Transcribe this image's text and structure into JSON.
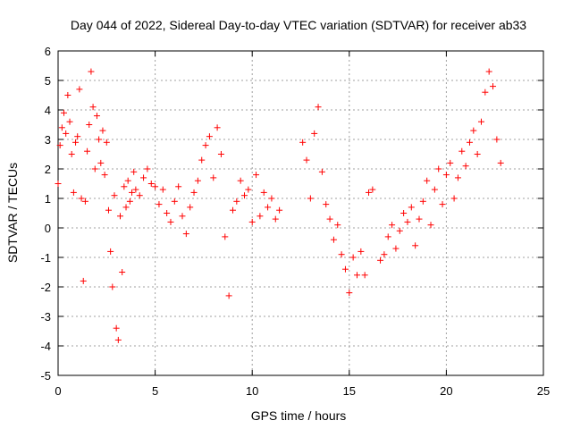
{
  "chart_data": {
    "type": "scatter",
    "title": "Day 044 of 2022, Sidereal Day-to-day VTEC variation (SDTVAR) for receiver ab33",
    "xlabel": "GPS time / hours",
    "ylabel": "SDTVAR / TECUs",
    "xlim": [
      0,
      25
    ],
    "ylim": [
      -5,
      6
    ],
    "xticks": [
      0,
      5,
      10,
      15,
      20,
      25
    ],
    "yticks": [
      -5,
      -4,
      -3,
      -2,
      -1,
      0,
      1,
      2,
      3,
      4,
      5,
      6
    ],
    "grid": true,
    "marker": "+",
    "series": [
      {
        "name": "SDTVAR ab33",
        "color": "#ff0000",
        "x": [
          0.0,
          0.1,
          0.2,
          0.3,
          0.4,
          0.5,
          0.6,
          0.7,
          0.8,
          0.9,
          1.0,
          1.1,
          1.2,
          1.3,
          1.4,
          1.5,
          1.6,
          1.7,
          1.8,
          1.9,
          2.0,
          2.1,
          2.2,
          2.3,
          2.4,
          2.5,
          2.6,
          2.7,
          2.8,
          2.9,
          3.0,
          3.1,
          3.2,
          3.3,
          3.4,
          3.5,
          3.6,
          3.7,
          3.8,
          3.9,
          4.0,
          4.2,
          4.4,
          4.6,
          4.8,
          5.0,
          5.2,
          5.4,
          5.6,
          5.8,
          6.0,
          6.2,
          6.4,
          6.6,
          6.8,
          7.0,
          7.2,
          7.4,
          7.6,
          7.8,
          8.0,
          8.2,
          8.4,
          8.6,
          8.8,
          9.0,
          9.2,
          9.4,
          9.6,
          9.8,
          10.0,
          10.2,
          10.4,
          10.6,
          10.8,
          11.0,
          11.2,
          11.4,
          12.6,
          12.8,
          13.0,
          13.2,
          13.4,
          13.6,
          13.8,
          14.0,
          14.2,
          14.4,
          14.6,
          14.8,
          15.0,
          15.2,
          15.4,
          15.6,
          15.8,
          16.0,
          16.2,
          16.6,
          16.8,
          17.0,
          17.2,
          17.4,
          17.6,
          17.8,
          18.0,
          18.2,
          18.4,
          18.6,
          18.8,
          19.0,
          19.2,
          19.4,
          19.6,
          19.8,
          20.0,
          20.2,
          20.4,
          20.6,
          20.8,
          21.0,
          21.2,
          21.4,
          21.6,
          21.8,
          22.0,
          22.2,
          22.4,
          22.6,
          22.8
        ],
        "y": [
          1.5,
          2.8,
          3.4,
          3.9,
          3.2,
          4.5,
          3.6,
          2.5,
          1.2,
          2.9,
          3.1,
          4.7,
          1.0,
          -1.8,
          0.9,
          2.6,
          3.5,
          5.3,
          4.1,
          2.0,
          3.8,
          3.0,
          2.2,
          3.3,
          1.8,
          2.9,
          0.6,
          -0.8,
          -2.0,
          1.1,
          -3.4,
          -3.8,
          0.4,
          -1.5,
          1.4,
          0.7,
          1.6,
          0.9,
          1.2,
          1.9,
          1.3,
          1.1,
          1.7,
          2.0,
          1.5,
          1.4,
          0.8,
          1.3,
          0.5,
          0.2,
          0.9,
          1.4,
          0.4,
          -0.2,
          0.7,
          1.2,
          1.6,
          2.3,
          2.8,
          3.1,
          1.7,
          3.4,
          2.5,
          -0.3,
          -2.3,
          0.6,
          0.9,
          1.6,
          1.1,
          1.3,
          0.2,
          1.8,
          0.4,
          1.2,
          0.7,
          1.0,
          0.3,
          0.6,
          2.9,
          2.3,
          1.0,
          3.2,
          4.1,
          1.9,
          0.8,
          0.3,
          -0.4,
          0.1,
          -0.9,
          -1.4,
          -2.2,
          -1.0,
          -1.6,
          -0.8,
          -1.6,
          1.2,
          1.3,
          -1.1,
          -0.9,
          -0.3,
          0.1,
          -0.7,
          -0.1,
          0.5,
          0.2,
          0.7,
          -0.6,
          0.3,
          0.9,
          1.6,
          0.1,
          1.3,
          2.0,
          0.8,
          1.8,
          2.2,
          1.0,
          1.7,
          2.6,
          2.1,
          2.9,
          3.3,
          2.5,
          3.6,
          4.6,
          5.3,
          4.8,
          3.0,
          2.2
        ]
      }
    ]
  }
}
